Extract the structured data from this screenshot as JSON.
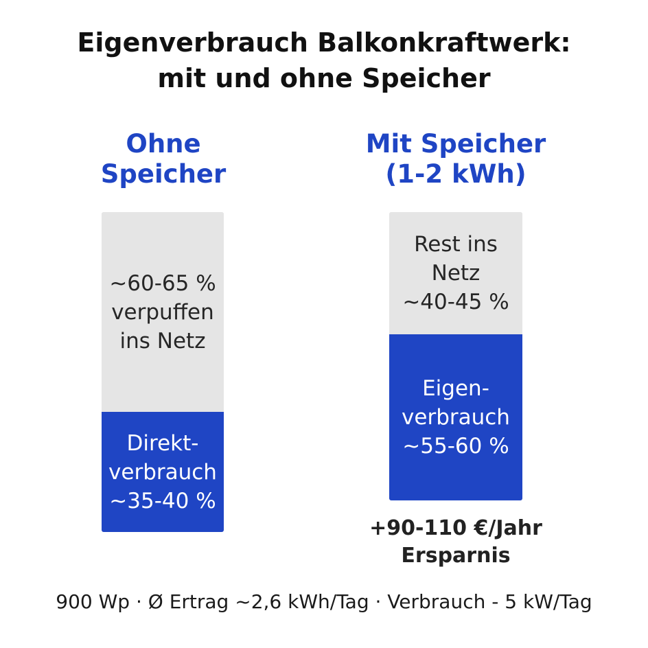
{
  "chart_data": {
    "type": "bar",
    "stacked": true,
    "title": "Eigenverbrauch Balkonkraftwerk:\nmit und ohne Speicher",
    "categories": [
      "Ohne\nSpeicher",
      "Mit Speicher\n(1-2 kWh)"
    ],
    "series": [
      {
        "values": [
          37.5,
          57.5
        ],
        "labels": [
          "Direkt-\nverbrauch\n~35-40 %",
          "Eigen-\nverbrauch\n~55-60 %"
        ],
        "color": "#1f45c4"
      },
      {
        "values": [
          62.5,
          42.5
        ],
        "labels": [
          "~60-65 %\nverpuffen\nins Netz",
          "Rest ins\nNetz\n~40-45 %"
        ],
        "color": "#e5e5e5"
      }
    ],
    "annotations": [
      "+90-110 €/Jahr\nErsparnis"
    ],
    "footer": "900 Wp · Ø Ertrag ~2,6 kWh/Tag · Verbrauch - 5 kW/Tag"
  }
}
